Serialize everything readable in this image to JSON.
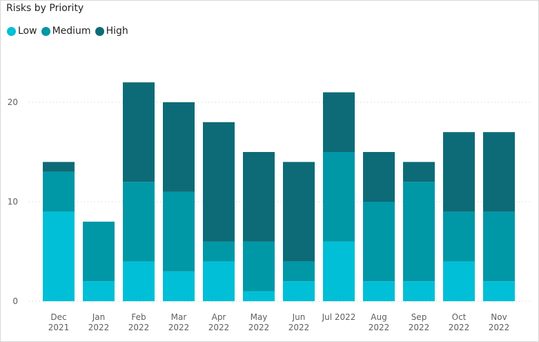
{
  "title": "Risks by Priority",
  "colors": {
    "Low": "#00bfd6",
    "Medium": "#0097a7",
    "High": "#0d6b77"
  },
  "chart_data": {
    "type": "bar",
    "stacked": true,
    "title": "Risks by Priority",
    "categories": [
      [
        "Dec",
        "2021"
      ],
      [
        "Jan",
        "2022"
      ],
      [
        "Feb",
        "2022"
      ],
      [
        "Mar",
        "2022"
      ],
      [
        "Apr",
        "2022"
      ],
      [
        "May",
        "2022"
      ],
      [
        "Jun",
        "2022"
      ],
      [
        "Jul 2022"
      ],
      [
        "Aug",
        "2022"
      ],
      [
        "Sep",
        "2022"
      ],
      [
        "Oct",
        "2022"
      ],
      [
        "Nov",
        "2022"
      ]
    ],
    "series": [
      {
        "name": "Low",
        "values": [
          9,
          2,
          4,
          3,
          4,
          1,
          2,
          6,
          2,
          2,
          4,
          2
        ]
      },
      {
        "name": "Medium",
        "values": [
          4,
          6,
          8,
          8,
          2,
          5,
          2,
          9,
          8,
          10,
          5,
          7
        ]
      },
      {
        "name": "High",
        "values": [
          1,
          0,
          10,
          9,
          12,
          9,
          10,
          6,
          5,
          2,
          8,
          8
        ]
      }
    ],
    "yticks": [
      "0",
      "10",
      "20"
    ],
    "ylim": [
      0,
      20
    ],
    "grid": true,
    "legend_position": "top-left"
  }
}
